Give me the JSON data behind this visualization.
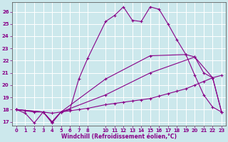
{
  "xlabel": "Windchill (Refroidissement éolien,°C)",
  "background_color": "#cce8ec",
  "grid_color": "#ffffff",
  "line_color": "#880088",
  "xlim": [
    -0.5,
    23.5
  ],
  "ylim": [
    16.7,
    26.8
  ],
  "xticks": [
    0,
    1,
    2,
    3,
    4,
    5,
    6,
    7,
    8,
    10,
    11,
    12,
    13,
    14,
    15,
    16,
    17,
    18,
    19,
    20,
    21,
    22,
    23
  ],
  "yticks": [
    17,
    18,
    19,
    20,
    21,
    22,
    23,
    24,
    25,
    26
  ],
  "line1_x": [
    0,
    1,
    2,
    3,
    4,
    5,
    6,
    7,
    8,
    10,
    11,
    12,
    13,
    14,
    15,
    16,
    17,
    18,
    19,
    20,
    21,
    22,
    23
  ],
  "line1_y": [
    18.0,
    17.7,
    16.9,
    17.8,
    16.9,
    17.8,
    18.0,
    20.5,
    22.2,
    25.2,
    25.7,
    26.4,
    25.3,
    25.2,
    26.4,
    26.2,
    25.0,
    23.7,
    22.5,
    20.8,
    19.2,
    18.2,
    17.8
  ],
  "line2_x": [
    0,
    1,
    2,
    3,
    4,
    5,
    6,
    7,
    8,
    10,
    11,
    12,
    13,
    14,
    15,
    16,
    17,
    18,
    19,
    20,
    21,
    22,
    23
  ],
  "line2_y": [
    18.0,
    17.9,
    17.8,
    17.8,
    17.7,
    17.8,
    17.9,
    18.0,
    18.1,
    18.4,
    18.5,
    18.6,
    18.7,
    18.8,
    18.9,
    19.1,
    19.3,
    19.5,
    19.7,
    20.0,
    20.3,
    20.6,
    20.8
  ],
  "line3_x": [
    0,
    3,
    4,
    5,
    10,
    15,
    20,
    21,
    22,
    23
  ],
  "line3_y": [
    18.0,
    17.8,
    17.0,
    17.8,
    19.2,
    21.0,
    22.3,
    21.0,
    20.6,
    17.8
  ],
  "line4_x": [
    0,
    3,
    4,
    5,
    10,
    15,
    19,
    20,
    22,
    23
  ],
  "line4_y": [
    18.0,
    17.8,
    17.0,
    17.8,
    20.5,
    22.4,
    22.5,
    22.3,
    20.6,
    17.8
  ]
}
